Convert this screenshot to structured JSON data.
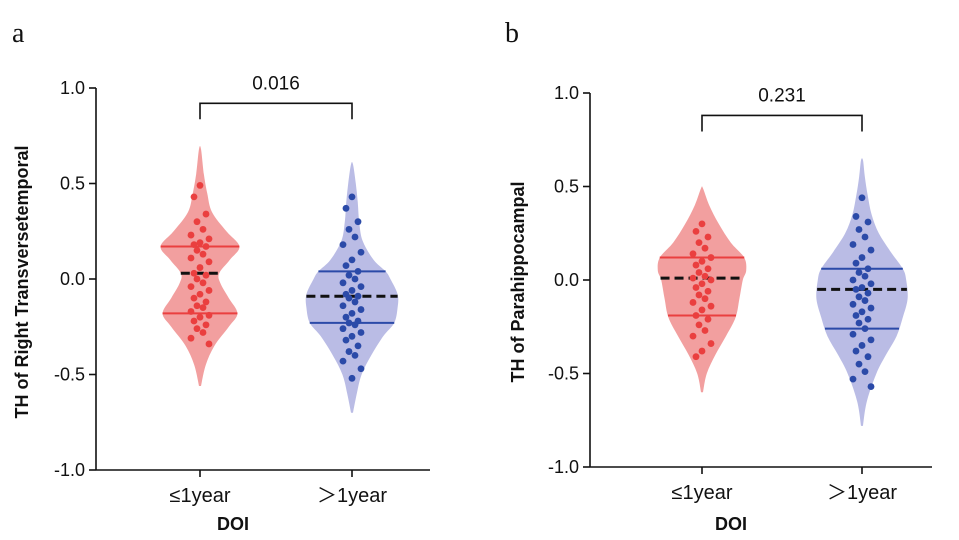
{
  "colors": {
    "group1_fill": "#f08e8e",
    "group1_points": "#ea3f3f",
    "group2_fill": "#aeb0e0",
    "group2_points": "#2b4aa8",
    "median_dash": "#111111",
    "axis": "#111111"
  },
  "chart_data": [
    {
      "type": "violin",
      "panel_label": "a",
      "xlabel": "DOI",
      "ylabel": "TH of Right Transversetemporal",
      "ylim": [
        -1.0,
        1.0
      ],
      "yticks": [
        "1.0",
        "0.5",
        "0.0",
        "-0.5",
        "-1.0"
      ],
      "categories": [
        "≤1year",
        "＞1year"
      ],
      "comparison": {
        "label": "0.016",
        "between": [
          0,
          1
        ],
        "y": 0.92
      },
      "series": [
        {
          "range": [
            -0.56,
            0.68
          ],
          "median": 0.03,
          "quartiles": [
            -0.18,
            0.17
          ],
          "density": [
            [
              -0.56,
              0.02
            ],
            [
              -0.45,
              0.12
            ],
            [
              -0.35,
              0.3
            ],
            [
              -0.25,
              0.6
            ],
            [
              -0.18,
              0.78
            ],
            [
              -0.1,
              0.6
            ],
            [
              -0.02,
              0.42
            ],
            [
              0.03,
              0.4
            ],
            [
              0.1,
              0.62
            ],
            [
              0.17,
              0.82
            ],
            [
              0.25,
              0.55
            ],
            [
              0.35,
              0.25
            ],
            [
              0.45,
              0.15
            ],
            [
              0.55,
              0.08
            ],
            [
              0.68,
              0.02
            ]
          ],
          "points": [
            0.49,
            0.43,
            0.34,
            0.3,
            0.26,
            0.23,
            0.21,
            0.19,
            0.18,
            0.17,
            0.15,
            0.13,
            0.11,
            0.09,
            0.06,
            0.03,
            0.02,
            0.0,
            -0.02,
            -0.04,
            -0.06,
            -0.08,
            -0.1,
            -0.12,
            -0.14,
            -0.15,
            -0.17,
            -0.19,
            -0.2,
            -0.22,
            -0.24,
            -0.26,
            -0.28,
            -0.31,
            -0.34
          ]
        },
        {
          "range": [
            -0.7,
            0.6
          ],
          "median": -0.09,
          "quartiles": [
            -0.23,
            0.04
          ],
          "density": [
            [
              -0.7,
              0.02
            ],
            [
              -0.6,
              0.1
            ],
            [
              -0.5,
              0.2
            ],
            [
              -0.4,
              0.4
            ],
            [
              -0.3,
              0.65
            ],
            [
              -0.23,
              0.88
            ],
            [
              -0.15,
              0.95
            ],
            [
              -0.08,
              0.95
            ],
            [
              0.0,
              0.8
            ],
            [
              0.04,
              0.7
            ],
            [
              0.1,
              0.45
            ],
            [
              0.2,
              0.22
            ],
            [
              0.3,
              0.15
            ],
            [
              0.4,
              0.12
            ],
            [
              0.5,
              0.08
            ],
            [
              0.6,
              0.02
            ]
          ],
          "points": [
            0.43,
            0.37,
            0.3,
            0.26,
            0.22,
            0.18,
            0.14,
            0.1,
            0.07,
            0.04,
            0.02,
            0.0,
            -0.02,
            -0.04,
            -0.06,
            -0.08,
            -0.09,
            -0.1,
            -0.12,
            -0.14,
            -0.16,
            -0.18,
            -0.2,
            -0.22,
            -0.23,
            -0.24,
            -0.26,
            -0.28,
            -0.3,
            -0.32,
            -0.35,
            -0.38,
            -0.4,
            -0.43,
            -0.47,
            -0.52
          ]
        }
      ]
    },
    {
      "type": "violin",
      "panel_label": "b",
      "xlabel": "DOI",
      "ylabel": "TH of Parahippocampal",
      "ylim": [
        -1.0,
        1.0
      ],
      "yticks": [
        "1.0",
        "0.5",
        "0.0",
        "-0.5",
        "-1.0"
      ],
      "categories": [
        "≤1year",
        "＞1year"
      ],
      "comparison": {
        "label": "0.231",
        "between": [
          0,
          1
        ],
        "y": 0.88
      },
      "series": [
        {
          "range": [
            -0.6,
            0.49
          ],
          "median": 0.01,
          "quartiles": [
            -0.19,
            0.12
          ],
          "density": [
            [
              -0.6,
              0.02
            ],
            [
              -0.5,
              0.1
            ],
            [
              -0.4,
              0.28
            ],
            [
              -0.3,
              0.5
            ],
            [
              -0.2,
              0.7
            ],
            [
              -0.1,
              0.78
            ],
            [
              0.0,
              0.85
            ],
            [
              0.05,
              0.92
            ],
            [
              0.12,
              0.88
            ],
            [
              0.2,
              0.6
            ],
            [
              0.3,
              0.35
            ],
            [
              0.4,
              0.15
            ],
            [
              0.49,
              0.02
            ]
          ],
          "points": [
            0.3,
            0.26,
            0.23,
            0.2,
            0.17,
            0.14,
            0.12,
            0.1,
            0.08,
            0.06,
            0.04,
            0.02,
            0.01,
            0.0,
            -0.02,
            -0.04,
            -0.06,
            -0.08,
            -0.1,
            -0.12,
            -0.14,
            -0.16,
            -0.19,
            -0.21,
            -0.24,
            -0.27,
            -0.3,
            -0.34,
            -0.38,
            -0.41
          ]
        },
        {
          "range": [
            -0.78,
            0.64
          ],
          "median": -0.05,
          "quartiles": [
            -0.26,
            0.06
          ],
          "density": [
            [
              -0.78,
              0.02
            ],
            [
              -0.65,
              0.1
            ],
            [
              -0.5,
              0.3
            ],
            [
              -0.4,
              0.5
            ],
            [
              -0.3,
              0.72
            ],
            [
              -0.2,
              0.85
            ],
            [
              -0.1,
              0.95
            ],
            [
              0.0,
              0.92
            ],
            [
              0.06,
              0.85
            ],
            [
              0.15,
              0.6
            ],
            [
              0.25,
              0.35
            ],
            [
              0.35,
              0.2
            ],
            [
              0.45,
              0.12
            ],
            [
              0.55,
              0.06
            ],
            [
              0.64,
              0.02
            ]
          ],
          "points": [
            0.44,
            0.34,
            0.31,
            0.27,
            0.23,
            0.19,
            0.16,
            0.12,
            0.09,
            0.06,
            0.04,
            0.02,
            0.0,
            -0.02,
            -0.04,
            -0.05,
            -0.07,
            -0.09,
            -0.11,
            -0.13,
            -0.15,
            -0.17,
            -0.19,
            -0.21,
            -0.23,
            -0.26,
            -0.29,
            -0.32,
            -0.35,
            -0.38,
            -0.41,
            -0.45,
            -0.49,
            -0.53,
            -0.57
          ]
        }
      ]
    }
  ]
}
